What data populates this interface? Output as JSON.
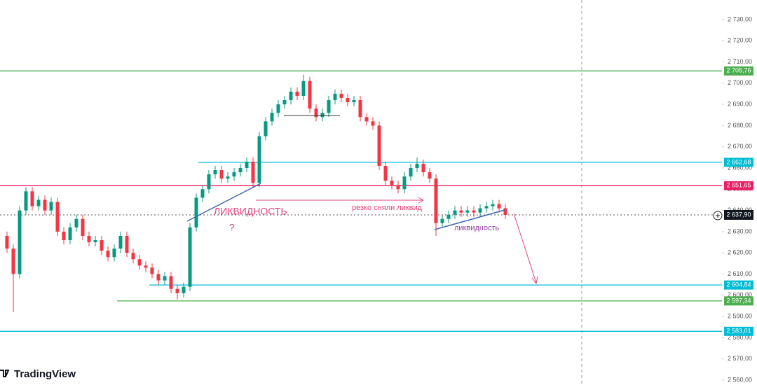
{
  "chart_data": {
    "type": "candlestick",
    "open": [
      2628,
      2622,
      2610,
      2640,
      2649,
      2642,
      2645,
      2640,
      2644,
      2630,
      2626,
      2632,
      2636,
      2628,
      2625,
      2626,
      2621,
      2618,
      2622,
      2628,
      2620,
      2617,
      2614,
      2613,
      2610,
      2607,
      2609,
      2603,
      2601,
      2604,
      2632,
      2646,
      2650,
      2657,
      2659,
      2655,
      2656,
      2658,
      2660,
      2663,
      2653,
      2675,
      2682,
      2686,
      2690,
      2692,
      2696,
      2694,
      2701,
      2688,
      2684,
      2686,
      2692,
      2695,
      2693,
      2691,
      2692,
      2684,
      2682,
      2680,
      2661,
      2654,
      2652,
      2650,
      2656,
      2660,
      2662,
      2658,
      2655,
      2634,
      2636,
      2638,
      2640,
      2639,
      2640,
      2639,
      2641,
      2642,
      2643,
      2641
    ],
    "high": [
      2630,
      2624,
      2642,
      2651,
      2651,
      2647,
      2647,
      2646,
      2646,
      2632,
      2634,
      2638,
      2638,
      2630,
      2628,
      2628,
      2623,
      2624,
      2630,
      2630,
      2622,
      2619,
      2616,
      2615,
      2612,
      2611,
      2611,
      2605,
      2606,
      2634,
      2648,
      2652,
      2659,
      2661,
      2661,
      2658,
      2660,
      2662,
      2665,
      2665,
      2677,
      2684,
      2688,
      2692,
      2694,
      2698,
      2698,
      2704,
      2703,
      2690,
      2688,
      2694,
      2697,
      2697,
      2695,
      2694,
      2694,
      2686,
      2684,
      2682,
      2663,
      2656,
      2654,
      2658,
      2662,
      2665,
      2664,
      2660,
      2657,
      2638,
      2640,
      2642,
      2642,
      2642,
      2642,
      2643,
      2644,
      2645,
      2645,
      2643
    ],
    "low": [
      2620,
      2592,
      2608,
      2638,
      2640,
      2640,
      2638,
      2638,
      2628,
      2624,
      2624,
      2630,
      2626,
      2623,
      2623,
      2619,
      2616,
      2616,
      2620,
      2618,
      2615,
      2612,
      2611,
      2608,
      2605,
      2605,
      2601,
      2598,
      2599,
      2602,
      2630,
      2644,
      2648,
      2655,
      2653,
      2653,
      2654,
      2656,
      2658,
      2651,
      2651,
      2673,
      2680,
      2684,
      2688,
      2690,
      2692,
      2692,
      2686,
      2682,
      2682,
      2684,
      2690,
      2691,
      2689,
      2689,
      2682,
      2680,
      2678,
      2659,
      2652,
      2650,
      2648,
      2648,
      2654,
      2658,
      2656,
      2653,
      2628,
      2632,
      2634,
      2636,
      2637,
      2637,
      2637,
      2637,
      2639,
      2640,
      2639,
      2635.9
    ],
    "close": [
      2622,
      2610,
      2640,
      2649,
      2642,
      2645,
      2640,
      2644,
      2630,
      2626,
      2632,
      2636,
      2628,
      2625,
      2626,
      2621,
      2618,
      2622,
      2628,
      2620,
      2617,
      2614,
      2613,
      2610,
      2607,
      2609,
      2603,
      2601,
      2604,
      2632,
      2646,
      2650,
      2657,
      2659,
      2655,
      2656,
      2658,
      2660,
      2663,
      2653,
      2675,
      2682,
      2686,
      2690,
      2692,
      2696,
      2694,
      2701,
      2688,
      2684,
      2686,
      2692,
      2695,
      2693,
      2691,
      2692,
      2684,
      2682,
      2680,
      2661,
      2654,
      2652,
      2650,
      2656,
      2660,
      2662,
      2658,
      2655,
      2634,
      2636,
      2638,
      2640,
      2639,
      2640,
      2639,
      2641,
      2642,
      2643,
      2641,
      2637.9
    ],
    "up_color": "#089981",
    "down_color": "#f23645",
    "ylim": [
      2557.7,
      2739.2
    ],
    "yticks": [
      {
        "value": 2560,
        "label": "2 560,00"
      },
      {
        "value": 2570,
        "label": "2 570,00"
      },
      {
        "value": 2580,
        "label": "2 580,00"
      },
      {
        "value": 2590,
        "label": "2 590,00"
      },
      {
        "value": 2600,
        "label": "2 600,00"
      },
      {
        "value": 2610,
        "label": "2 610,00"
      },
      {
        "value": 2620,
        "label": "2 620,00"
      },
      {
        "value": 2630,
        "label": "2 630,00"
      },
      {
        "value": 2640,
        "label": "2 640,00"
      },
      {
        "value": 2650,
        "label": "2 650,00"
      },
      {
        "value": 2660,
        "label": "2 660,00"
      },
      {
        "value": 2670,
        "label": "2 670,00"
      },
      {
        "value": 2680,
        "label": "2 680,00"
      },
      {
        "value": 2690,
        "label": "2 690,00"
      },
      {
        "value": 2700,
        "label": "2 700,00"
      },
      {
        "value": 2710,
        "label": "2 710,00"
      },
      {
        "value": 2720,
        "label": "2 720,00"
      },
      {
        "value": 2730,
        "label": "2 730,00"
      }
    ],
    "levels": [
      {
        "value": 2705.76,
        "label": "2 705,76",
        "color": "#4caf50"
      },
      {
        "value": 2662.68,
        "label": "2 662,68",
        "color": "#00bcd4"
      },
      {
        "value": 2651.65,
        "label": "2 651,65",
        "color": "#e91e63"
      },
      {
        "value": 2604.84,
        "label": "2 604,84",
        "color": "#00bcd4"
      },
      {
        "value": 2597.34,
        "label": "2 597,34",
        "color": "#4caf50"
      },
      {
        "value": 2583.01,
        "label": "2 583,01",
        "color": "#00bcd4"
      }
    ],
    "last_price": {
      "value": 2637.9,
      "label": "2 637,90"
    },
    "annotations": [
      "ЛИКВИДНОСТЬ",
      "?",
      "резко сняли ликвид",
      "ликвидность"
    ],
    "brand": "TradingView"
  }
}
